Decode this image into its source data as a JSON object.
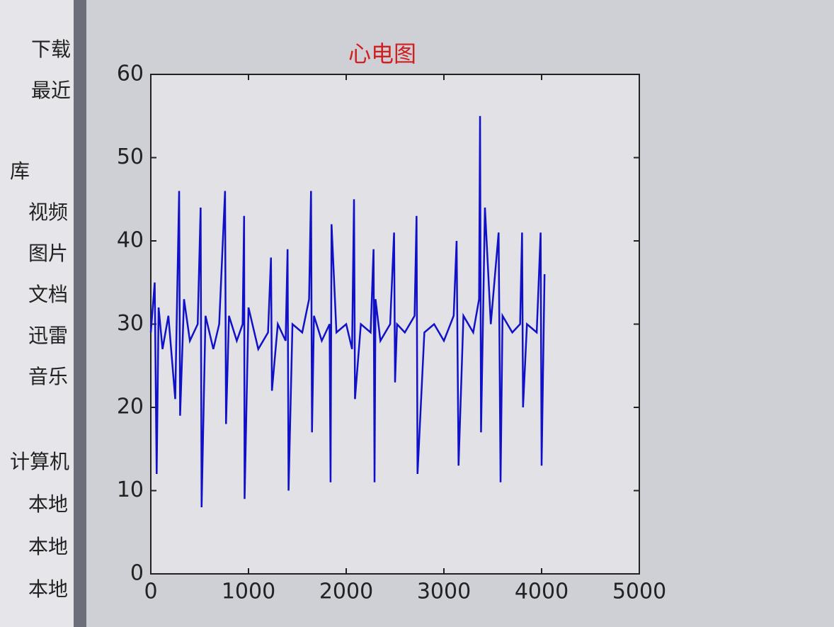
{
  "sidebar": {
    "items": [
      "下载",
      "最近",
      "库",
      "视频",
      "图片",
      "文档",
      "迅雷",
      "音乐",
      "计算机",
      "本地",
      "本地",
      "本地"
    ]
  },
  "chart_data": {
    "type": "line",
    "title": "心电图",
    "color": "#1010c8",
    "x": [
      0,
      40,
      60,
      80,
      120,
      180,
      250,
      290,
      300,
      340,
      400,
      480,
      510,
      520,
      560,
      640,
      700,
      760,
      770,
      800,
      880,
      940,
      955,
      960,
      1000,
      1100,
      1200,
      1230,
      1240,
      1300,
      1380,
      1400,
      1410,
      1450,
      1550,
      1620,
      1640,
      1650,
      1670,
      1750,
      1830,
      1840,
      1850,
      1900,
      2000,
      2060,
      2080,
      2090,
      2150,
      2250,
      2280,
      2290,
      2300,
      2350,
      2450,
      2490,
      2500,
      2520,
      2600,
      2700,
      2720,
      2730,
      2800,
      2900,
      3000,
      3100,
      3130,
      3150,
      3200,
      3300,
      3360,
      3370,
      3380,
      3420,
      3480,
      3560,
      3580,
      3600,
      3700,
      3780,
      3800,
      3810,
      3850,
      3950,
      3990,
      4000,
      4030
    ],
    "values": [
      29,
      35,
      12,
      32,
      27,
      31,
      21,
      46,
      19,
      33,
      28,
      30,
      44,
      8,
      31,
      27,
      30,
      46,
      18,
      31,
      28,
      30,
      43,
      9,
      32,
      27,
      29,
      38,
      22,
      30,
      28,
      39,
      10,
      30,
      29,
      33,
      46,
      17,
      31,
      28,
      30,
      11,
      42,
      29,
      30,
      27,
      45,
      21,
      30,
      29,
      39,
      11,
      33,
      28,
      30,
      41,
      23,
      30,
      29,
      31,
      43,
      12,
      29,
      30,
      28,
      31,
      40,
      13,
      31,
      29,
      33,
      55,
      17,
      44,
      30,
      41,
      11,
      31,
      29,
      30,
      41,
      20,
      30,
      29,
      41,
      13,
      36
    ],
    "xlim": [
      0,
      5000
    ],
    "xticks": [
      0,
      1000,
      2000,
      3000,
      4000,
      5000
    ],
    "ylim": [
      0,
      60
    ],
    "yticks": [
      0,
      10,
      20,
      30,
      40,
      50,
      60
    ]
  }
}
